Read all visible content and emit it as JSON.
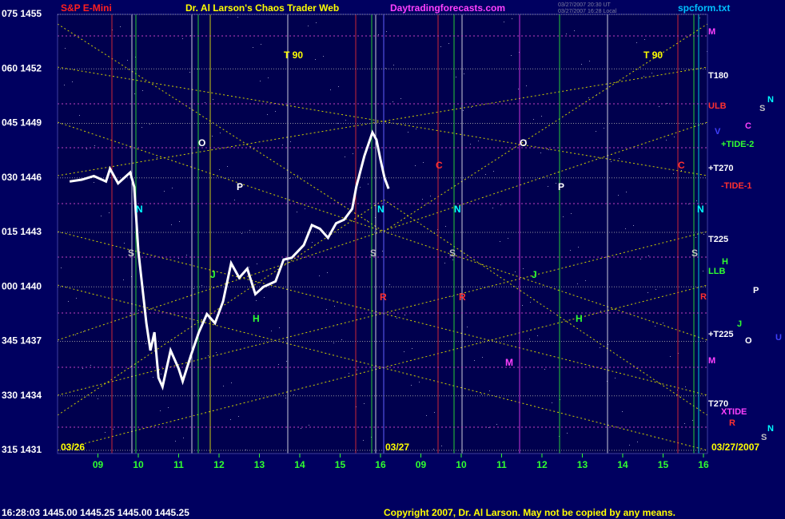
{
  "chart_data": {
    "type": "line",
    "title": "S&P E-Mini",
    "subtitle": "Dr. Al Larson's Chaos Trader Web",
    "site": "Daytradingforecasts.com",
    "file": "spcform.txt",
    "timestamp_lines": [
      "03/27/2007 20:30 UT",
      "03/27/2007 16:28 Local"
    ],
    "dates": [
      "03/26",
      "03/27",
      "03/27/2007"
    ],
    "status": "16:28:03  1445.00 1445.25 1445.00 1445.25",
    "copyright": "Copyright 2007, Dr. Al Larson. May not be copied by any means.",
    "ylim": [
      1431,
      1455
    ],
    "yticks": [
      {
        "value": 1455,
        "label": "075 1455"
      },
      {
        "value": 1452,
        "label": "060 1452"
      },
      {
        "value": 1449,
        "label": "045 1449"
      },
      {
        "value": 1446,
        "label": "030 1446"
      },
      {
        "value": 1443,
        "label": "015 1443"
      },
      {
        "value": 1440,
        "label": "000 1440"
      },
      {
        "value": 1437,
        "label": "345 1437"
      },
      {
        "value": 1434,
        "label": "330 1434"
      },
      {
        "value": 1431,
        "label": "315 1431"
      }
    ],
    "xlim": [
      8,
      24.1
    ],
    "xticks": [
      {
        "value": 9,
        "label": "09"
      },
      10,
      11,
      12,
      13,
      14,
      15,
      16,
      {
        "value": 17,
        "label": "09"
      },
      {
        "value": 18,
        "label": "10"
      },
      {
        "value": 19,
        "label": "11"
      },
      {
        "value": 20,
        "label": "12"
      },
      {
        "value": 21,
        "label": "13"
      },
      {
        "value": 22,
        "label": "14"
      },
      {
        "value": 23,
        "label": "15"
      },
      {
        "value": 24,
        "label": "16"
      }
    ],
    "grid": true,
    "series": [
      {
        "name": "S&P E-Mini",
        "color": "#ffffff",
        "x": [
          8.3,
          8.6,
          8.9,
          9.2,
          9.3,
          9.5,
          9.8,
          9.9,
          10.0,
          10.1,
          10.2,
          10.3,
          10.4,
          10.5,
          10.6,
          10.8,
          11.0,
          11.1,
          11.3,
          11.5,
          11.7,
          11.9,
          12.1,
          12.3,
          12.5,
          12.7,
          12.9,
          13.1,
          13.4,
          13.6,
          13.8,
          14.1,
          14.3,
          14.5,
          14.7,
          14.9,
          15.1,
          15.3,
          15.4,
          15.6,
          15.8,
          15.9,
          16.0,
          16.1,
          16.2
        ],
        "values": [
          1445.8,
          1445.9,
          1446.1,
          1445.8,
          1446.5,
          1445.7,
          1446.3,
          1445.5,
          1442,
          1440,
          1438,
          1436.5,
          1437.5,
          1435,
          1434.5,
          1436.5,
          1435.5,
          1434.8,
          1436.2,
          1437.5,
          1438.5,
          1438,
          1439.2,
          1441.3,
          1440.5,
          1441,
          1439.6,
          1440,
          1440.3,
          1441.5,
          1441.6,
          1442.3,
          1443.4,
          1443.2,
          1442.7,
          1443.5,
          1443.7,
          1444.3,
          1445.5,
          1447.2,
          1448.5,
          1448.1,
          1447,
          1446,
          1445.4
        ]
      }
    ],
    "annotations": [
      "T 90",
      "T 90",
      "O",
      "O",
      "P",
      "P",
      "N",
      "N",
      "N",
      "N",
      "S",
      "S",
      "S",
      "S",
      "J",
      "J",
      "H",
      "H",
      "R",
      "R",
      "C",
      "C",
      "M"
    ],
    "right_labels": [
      "M",
      "T180",
      "ULB",
      "+TIDE-2",
      "+T270",
      "-TIDE-1",
      "T225",
      "LLB",
      "+T225",
      "M",
      "T270",
      "XTIDE",
      "R",
      "N",
      "S",
      "C",
      "V",
      "H",
      "P",
      "J",
      "O",
      "U",
      "R",
      "N",
      "S"
    ]
  }
}
